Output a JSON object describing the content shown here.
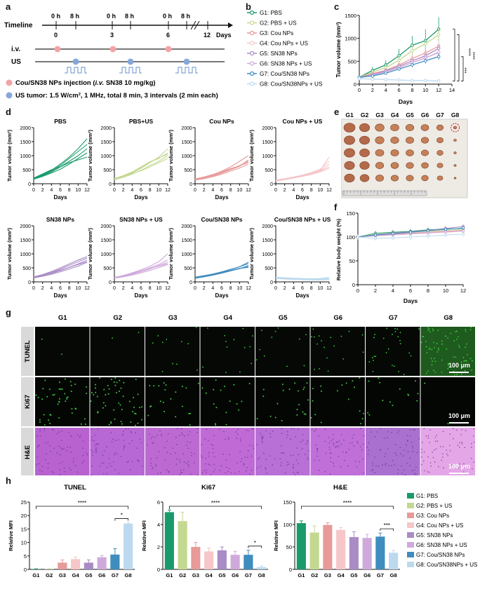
{
  "colors": {
    "g1": "#1a9a6a",
    "g2": "#c4d990",
    "g3": "#e79a98",
    "g4": "#f6c6c8",
    "g5": "#a98bc6",
    "g6": "#cfa9dc",
    "g7": "#3f8cbf",
    "g8": "#bcd9ef",
    "inj": "#f2a3a6",
    "us": "#86a8d9"
  },
  "panels": {
    "a": "a",
    "b": "b",
    "c": "c",
    "d": "d",
    "e": "e",
    "f": "f",
    "g": "g",
    "h": "h"
  },
  "panel_a": {
    "timeline_label": "Timeline",
    "hour_labels": [
      "0 h",
      "8 h",
      "0 h",
      "8 h",
      "0 h",
      "8 h"
    ],
    "day_labels": [
      "0",
      "3",
      "6",
      "12"
    ],
    "days_unit": "Days",
    "iv_label": "i.v.",
    "us_label": "US",
    "legend_inj_pre": "Cou/SN38 NPs injection (",
    "legend_inj_it": "i.v.",
    "legend_inj_post": " SN38 10 mg/kg)",
    "legend_us": "US tumor: 1.5 W/cm², 1 MHz, total 8 min, 3 intervals (2 min each)"
  },
  "legend_groups": [
    "G1: PBS",
    "G2: PBS + US",
    "G3: Cou NPs",
    "G4: Cou NPs + US",
    "G5: SN38 NPs",
    "G6: SN38 NPs + US",
    "G7: Cou/SN38 NPs",
    "G8: Cou/SN38NPs + US"
  ],
  "chart_c": {
    "type": "line",
    "ylabel": "Tumor volume (mm³)",
    "xlabel": "Days",
    "ylim": [
      0,
      1500
    ],
    "xlim": [
      0,
      14
    ],
    "yticks": [
      0,
      500,
      1000,
      1500
    ],
    "xticks": [
      0,
      2,
      4,
      6,
      8,
      10,
      12,
      14
    ],
    "x": [
      0,
      2,
      4,
      6,
      8,
      10,
      12
    ],
    "series": [
      {
        "name": "G1: PBS",
        "values": [
          150,
          300,
          420,
          620,
          850,
          950,
          1200
        ],
        "err": [
          40,
          80,
          100,
          150,
          200,
          250,
          260
        ]
      },
      {
        "name": "G2: PBS + US",
        "values": [
          150,
          260,
          360,
          520,
          730,
          880,
          1080
        ],
        "err": [
          30,
          50,
          70,
          90,
          110,
          120,
          130
        ]
      },
      {
        "name": "G3: Cou NPs",
        "values": [
          150,
          230,
          300,
          420,
          560,
          680,
          830
        ],
        "err": [
          30,
          40,
          50,
          60,
          70,
          80,
          90
        ]
      },
      {
        "name": "G4: Cou NPs + US",
        "values": [
          140,
          200,
          270,
          360,
          470,
          580,
          680
        ],
        "err": [
          20,
          30,
          40,
          50,
          60,
          70,
          80
        ]
      },
      {
        "name": "G5: SN38 NPs",
        "values": [
          140,
          210,
          290,
          390,
          510,
          620,
          780
        ],
        "err": [
          20,
          30,
          40,
          50,
          60,
          70,
          80
        ]
      },
      {
        "name": "G6: SN38 NPs + US",
        "values": [
          140,
          200,
          270,
          360,
          470,
          570,
          700
        ],
        "err": [
          20,
          30,
          40,
          50,
          60,
          70,
          80
        ]
      },
      {
        "name": "G7: Cou/SN38 NPs",
        "values": [
          150,
          180,
          240,
          330,
          420,
          510,
          600
        ],
        "err": [
          20,
          30,
          30,
          40,
          50,
          60,
          70
        ]
      },
      {
        "name": "G8: Cou/SN38NPs + US",
        "values": [
          120,
          110,
          100,
          90,
          80,
          80,
          70
        ],
        "err": [
          20,
          20,
          20,
          20,
          20,
          20,
          20
        ]
      }
    ],
    "significance": [
      "***",
      "****",
      "****"
    ]
  },
  "chart_d": {
    "type": "line",
    "ylabel": "Tumor volume (mm³)",
    "xlabel": "Days",
    "ylim": [
      0,
      2000
    ],
    "yticks": [
      0,
      500,
      1000,
      1500,
      2000
    ],
    "xticks": [
      0,
      2,
      4,
      6,
      8,
      10,
      12
    ],
    "x": [
      0,
      2,
      4,
      6,
      8,
      10,
      12
    ],
    "panels": [
      {
        "title": "PBS",
        "group": "g1",
        "curves": [
          [
            180,
            300,
            450,
            650,
            900,
            1150,
            1400
          ],
          [
            200,
            320,
            480,
            700,
            950,
            1250,
            1600
          ],
          [
            170,
            280,
            420,
            600,
            800,
            1000,
            1250
          ],
          [
            160,
            260,
            380,
            520,
            700,
            900,
            1100
          ],
          [
            200,
            350,
            500,
            600,
            750,
            850,
            950
          ]
        ]
      },
      {
        "title": "PBS+US",
        "group": "g2",
        "curves": [
          [
            150,
            250,
            380,
            550,
            750,
            950,
            1250
          ],
          [
            170,
            270,
            400,
            570,
            780,
            900,
            1100
          ],
          [
            140,
            230,
            340,
            480,
            650,
            800,
            1000
          ],
          [
            160,
            260,
            360,
            460,
            600,
            750,
            900
          ],
          [
            180,
            290,
            420,
            600,
            780,
            920,
            1050
          ]
        ]
      },
      {
        "title": "Cou NPs",
        "group": "g3",
        "curves": [
          [
            150,
            220,
            320,
            450,
            600,
            800,
            1000
          ],
          [
            160,
            230,
            300,
            400,
            520,
            650,
            800
          ],
          [
            130,
            180,
            250,
            340,
            450,
            560,
            700
          ],
          [
            140,
            200,
            270,
            380,
            500,
            620,
            850
          ],
          [
            170,
            240,
            330,
            430,
            540,
            640,
            760
          ]
        ]
      },
      {
        "title": "Cou NPs + US",
        "group": "g4",
        "curves": [
          [
            100,
            150,
            210,
            290,
            380,
            480,
            950
          ],
          [
            120,
            170,
            230,
            300,
            380,
            460,
            700
          ],
          [
            110,
            160,
            220,
            280,
            350,
            450,
            600
          ],
          [
            130,
            180,
            240,
            310,
            400,
            520,
            800
          ],
          [
            90,
            140,
            200,
            260,
            330,
            420,
            550
          ]
        ]
      },
      {
        "title": "SN38 NPs",
        "group": "g5",
        "curves": [
          [
            180,
            260,
            370,
            500,
            640,
            780,
            900
          ],
          [
            160,
            240,
            340,
            460,
            590,
            720,
            850
          ],
          [
            150,
            220,
            300,
            400,
            520,
            640,
            780
          ],
          [
            140,
            200,
            270,
            360,
            460,
            560,
            700
          ],
          [
            170,
            250,
            330,
            420,
            520,
            620,
            720
          ]
        ]
      },
      {
        "title": "SN38 NPs + US",
        "group": "g6",
        "curves": [
          [
            160,
            230,
            320,
            430,
            560,
            720,
            1000
          ],
          [
            150,
            210,
            290,
            390,
            500,
            620,
            780
          ],
          [
            140,
            200,
            270,
            360,
            460,
            580,
            700
          ],
          [
            130,
            180,
            240,
            320,
            410,
            510,
            620
          ],
          [
            150,
            220,
            300,
            390,
            480,
            560,
            650
          ]
        ]
      },
      {
        "title": "Cou/SN38 NPs",
        "group": "g7",
        "curves": [
          [
            150,
            200,
            270,
            350,
            440,
            540,
            700
          ],
          [
            160,
            210,
            280,
            360,
            450,
            540,
            650
          ],
          [
            130,
            180,
            240,
            310,
            390,
            470,
            580
          ],
          [
            140,
            190,
            250,
            320,
            400,
            480,
            560
          ],
          [
            170,
            220,
            280,
            340,
            410,
            480,
            520
          ]
        ]
      },
      {
        "title": "Cou/SN38 NPs + US",
        "group": "g8",
        "curves": [
          [
            150,
            130,
            120,
            110,
            100,
            110,
            120
          ],
          [
            130,
            120,
            100,
            90,
            80,
            90,
            100
          ],
          [
            160,
            150,
            130,
            120,
            110,
            120,
            160
          ],
          [
            120,
            100,
            90,
            80,
            70,
            70,
            80
          ],
          [
            140,
            130,
            110,
            100,
            90,
            100,
            110
          ]
        ]
      }
    ]
  },
  "panel_e": {
    "group_labels": [
      "G1",
      "G2",
      "G3",
      "G4",
      "G5",
      "G6",
      "G7",
      "G8"
    ],
    "tumor_sizes": [
      [
        1,
        0.95,
        0.95,
        0.9,
        0.9
      ],
      [
        0.9,
        0.9,
        0.88,
        0.85,
        0.8
      ],
      [
        0.8,
        0.78,
        0.75,
        0.72,
        0.7
      ],
      [
        0.75,
        0.72,
        0.7,
        0.68,
        0.65
      ],
      [
        0.72,
        0.7,
        0.68,
        0.66,
        0.64
      ],
      [
        0.68,
        0.66,
        0.64,
        0.62,
        0.6
      ],
      [
        0.6,
        0.58,
        0.55,
        0.52,
        0.5
      ],
      [
        0.3,
        0.25,
        0.22,
        0.2,
        0.18
      ]
    ]
  },
  "chart_f": {
    "type": "line",
    "ylabel": "Relative body weight (%)",
    "xlabel": "Days",
    "ylim": [
      0,
      150
    ],
    "yticks": [
      0,
      50,
      100,
      150
    ],
    "xticks": [
      0,
      2,
      4,
      6,
      8,
      10,
      12
    ],
    "x": [
      0,
      2,
      4,
      6,
      8,
      10,
      12
    ],
    "series": [
      {
        "group": "g1",
        "values": [
          100,
          108,
          110,
          112,
          115,
          117,
          118
        ]
      },
      {
        "group": "g2",
        "values": [
          100,
          106,
          108,
          110,
          112,
          114,
          116
        ]
      },
      {
        "group": "g3",
        "values": [
          100,
          104,
          106,
          108,
          110,
          112,
          114
        ]
      },
      {
        "group": "g4",
        "values": [
          100,
          102,
          104,
          106,
          108,
          110,
          112
        ]
      },
      {
        "group": "g5",
        "values": [
          100,
          105,
          108,
          111,
          114,
          118,
          122
        ]
      },
      {
        "group": "g6",
        "values": [
          100,
          103,
          105,
          107,
          109,
          111,
          113
        ]
      },
      {
        "group": "g7",
        "values": [
          100,
          104,
          107,
          110,
          113,
          116,
          119
        ]
      },
      {
        "group": "g8",
        "values": [
          100,
          97,
          98,
          100,
          102,
          104,
          106
        ]
      }
    ]
  },
  "panel_g": {
    "col_labels": [
      "G1",
      "G2",
      "G3",
      "G4",
      "G5",
      "G6",
      "G7",
      "G8"
    ],
    "row_labels": [
      "TUNEL",
      "Ki67",
      "H&E"
    ],
    "scale_bar": "100 μm",
    "tunel_density": [
      0.01,
      0.01,
      0.06,
      0.07,
      0.06,
      0.1,
      0.15,
      0.4
    ],
    "ki67_density": [
      0.25,
      0.3,
      0.12,
      0.1,
      0.12,
      0.1,
      0.08,
      0.01
    ],
    "he_color": [
      "#b862d0",
      "#b868d4",
      "#bc6ad2",
      "#c06ad6",
      "#b870d6",
      "#c06fd8",
      "#aa70d0",
      "#e4a6e6"
    ]
  },
  "chart_h": [
    {
      "type": "bar",
      "title": "TUNEL",
      "ylabel": "Relative MFI",
      "ylim": [
        0,
        25
      ],
      "yticks": [
        0,
        5,
        10,
        15,
        20,
        25
      ],
      "categories": [
        "G1",
        "G2",
        "G3",
        "G4",
        "G5",
        "G6",
        "G7",
        "G8"
      ],
      "values": [
        0.1,
        0.1,
        2.5,
        3.8,
        2.5,
        4.5,
        5.5,
        17
      ],
      "err": [
        0.1,
        0.1,
        1,
        0.8,
        1,
        0.6,
        2.2,
        0.3
      ],
      "significance": [
        {
          "a": 0,
          "b": 7,
          "label": "****"
        },
        {
          "a": 6,
          "b": 7,
          "label": "*"
        }
      ]
    },
    {
      "type": "bar",
      "title": "Ki67",
      "ylabel": "Relative MFI",
      "ylim": [
        0,
        6
      ],
      "yticks": [
        0,
        2,
        4,
        6
      ],
      "categories": [
        "G1",
        "G2",
        "G3",
        "G4",
        "G5",
        "G6",
        "G7",
        "G8"
      ],
      "values": [
        5.1,
        4.3,
        2.0,
        1.6,
        1.7,
        1.3,
        1.3,
        0.2
      ],
      "err": [
        0.2,
        0.8,
        0.4,
        0.3,
        0.3,
        0.3,
        0.4,
        0.1
      ],
      "significance": [
        {
          "a": 0,
          "b": 7,
          "label": "****"
        },
        {
          "a": 6,
          "b": 7,
          "label": "*"
        }
      ]
    },
    {
      "type": "bar",
      "title": "H&E",
      "ylabel": "Relative MFI",
      "ylim": [
        0,
        150
      ],
      "yticks": [
        0,
        50,
        100,
        150
      ],
      "categories": [
        "G1",
        "G2",
        "G3",
        "G4",
        "G5",
        "G6",
        "G7",
        "G8"
      ],
      "values": [
        103,
        82,
        99,
        88,
        72,
        70,
        73,
        37
      ],
      "err": [
        5,
        15,
        5,
        5,
        12,
        8,
        8,
        5
      ],
      "significance": [
        {
          "a": 0,
          "b": 7,
          "label": "****"
        },
        {
          "a": 6,
          "b": 7,
          "label": "***"
        }
      ]
    }
  ]
}
